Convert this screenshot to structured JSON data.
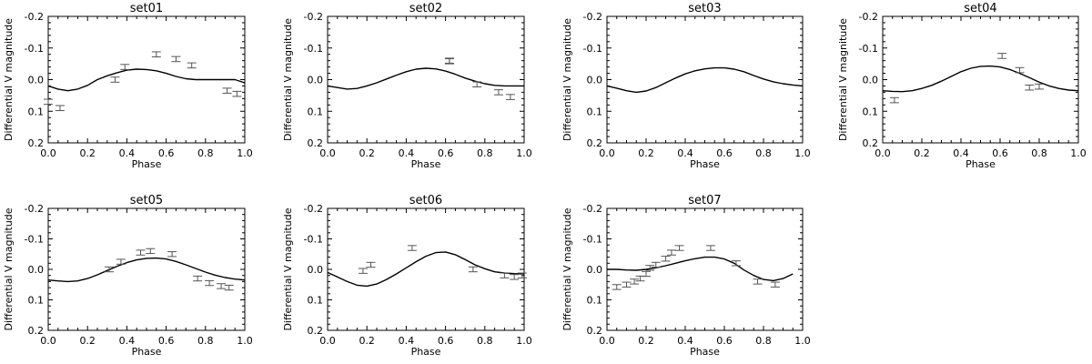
{
  "chart_data": [
    {
      "type": "scatter",
      "title": "set01",
      "xlabel": "Phase",
      "ylabel": "Differential V magnitude",
      "xlim": [
        0.0,
        1.0
      ],
      "ylim": [
        0.2,
        -0.2
      ],
      "xticks": [
        "0.0",
        "0.2",
        "0.4",
        "0.6",
        "0.8",
        "1.0"
      ],
      "yticks": [
        "-0.2",
        "-0.1",
        "0.0",
        "0.1",
        "0.2"
      ],
      "model": [
        [
          0.0,
          0.02
        ],
        [
          0.05,
          0.03
        ],
        [
          0.1,
          0.035
        ],
        [
          0.15,
          0.03
        ],
        [
          0.2,
          0.018
        ],
        [
          0.25,
          0.0
        ],
        [
          0.3,
          -0.012
        ],
        [
          0.35,
          -0.022
        ],
        [
          0.4,
          -0.03
        ],
        [
          0.45,
          -0.033
        ],
        [
          0.5,
          -0.032
        ],
        [
          0.55,
          -0.028
        ],
        [
          0.6,
          -0.02
        ],
        [
          0.65,
          -0.01
        ],
        [
          0.7,
          -0.003
        ],
        [
          0.75,
          0.0
        ],
        [
          0.8,
          0.0
        ],
        [
          0.85,
          0.0
        ],
        [
          0.9,
          0.0
        ],
        [
          0.95,
          0.0
        ],
        [
          1.0,
          0.01
        ]
      ],
      "points": [
        {
          "x": 0.0,
          "y": 0.07,
          "e": 0.008
        },
        {
          "x": 0.06,
          "y": 0.09,
          "e": 0.008
        },
        {
          "x": 0.34,
          "y": 0.0,
          "e": 0.008
        },
        {
          "x": 0.39,
          "y": -0.04,
          "e": 0.008
        },
        {
          "x": 0.55,
          "y": -0.08,
          "e": 0.008
        },
        {
          "x": 0.65,
          "y": -0.065,
          "e": 0.008
        },
        {
          "x": 0.73,
          "y": -0.045,
          "e": 0.008
        },
        {
          "x": 0.91,
          "y": 0.035,
          "e": 0.008
        },
        {
          "x": 0.96,
          "y": 0.045,
          "e": 0.008
        }
      ]
    },
    {
      "type": "scatter",
      "title": "set02",
      "xlabel": "Phase",
      "ylabel": "Differential V magnitude",
      "xlim": [
        0.0,
        1.0
      ],
      "ylim": [
        0.2,
        -0.2
      ],
      "xticks": [
        "0.0",
        "0.2",
        "0.4",
        "0.6",
        "0.8",
        "1.0"
      ],
      "yticks": [
        "-0.2",
        "-0.1",
        "0.0",
        "0.1",
        "0.2"
      ],
      "model": [
        [
          0.0,
          0.02
        ],
        [
          0.05,
          0.025
        ],
        [
          0.1,
          0.03
        ],
        [
          0.15,
          0.028
        ],
        [
          0.2,
          0.02
        ],
        [
          0.25,
          0.01
        ],
        [
          0.3,
          -0.002
        ],
        [
          0.35,
          -0.014
        ],
        [
          0.4,
          -0.025
        ],
        [
          0.45,
          -0.033
        ],
        [
          0.5,
          -0.036
        ],
        [
          0.55,
          -0.034
        ],
        [
          0.6,
          -0.027
        ],
        [
          0.65,
          -0.017
        ],
        [
          0.7,
          -0.005
        ],
        [
          0.75,
          0.005
        ],
        [
          0.8,
          0.013
        ],
        [
          0.85,
          0.018
        ],
        [
          0.9,
          0.02
        ],
        [
          0.95,
          0.02
        ],
        [
          1.0,
          0.02
        ]
      ],
      "points": [
        {
          "x": 0.62,
          "y": -0.06,
          "e": 0.008
        },
        {
          "x": 0.62,
          "y": -0.058,
          "e": 0.008
        },
        {
          "x": 0.76,
          "y": 0.015,
          "e": 0.008
        },
        {
          "x": 0.87,
          "y": 0.04,
          "e": 0.008
        },
        {
          "x": 0.93,
          "y": 0.055,
          "e": 0.008
        }
      ]
    },
    {
      "type": "scatter",
      "title": "set03",
      "xlabel": "Phase",
      "ylabel": "Differential V magnitude",
      "xlim": [
        0.0,
        1.0
      ],
      "ylim": [
        0.2,
        -0.2
      ],
      "xticks": [
        "0.0",
        "0.2",
        "0.4",
        "0.6",
        "0.8",
        "1.0"
      ],
      "yticks": [
        "-0.2",
        "-0.1",
        "0.0",
        "0.1",
        "0.2"
      ],
      "model": [
        [
          0.0,
          0.02
        ],
        [
          0.05,
          0.027
        ],
        [
          0.1,
          0.035
        ],
        [
          0.15,
          0.04
        ],
        [
          0.2,
          0.036
        ],
        [
          0.25,
          0.025
        ],
        [
          0.3,
          0.01
        ],
        [
          0.35,
          -0.005
        ],
        [
          0.4,
          -0.018
        ],
        [
          0.45,
          -0.028
        ],
        [
          0.5,
          -0.034
        ],
        [
          0.55,
          -0.037
        ],
        [
          0.6,
          -0.037
        ],
        [
          0.65,
          -0.033
        ],
        [
          0.7,
          -0.025
        ],
        [
          0.75,
          -0.013
        ],
        [
          0.8,
          -0.002
        ],
        [
          0.85,
          0.007
        ],
        [
          0.9,
          0.013
        ],
        [
          0.95,
          0.017
        ],
        [
          1.0,
          0.02
        ]
      ],
      "points": []
    },
    {
      "type": "scatter",
      "title": "set04",
      "xlabel": "Phase",
      "ylabel": "Differential V magnitude",
      "xlim": [
        0.0,
        1.0
      ],
      "ylim": [
        0.2,
        -0.2
      ],
      "xticks": [
        "0.0",
        "0.2",
        "0.4",
        "0.6",
        "0.8",
        "1.0"
      ],
      "yticks": [
        "-0.2",
        "-0.1",
        "0.0",
        "0.1",
        "0.2"
      ],
      "model": [
        [
          0.0,
          0.035
        ],
        [
          0.05,
          0.037
        ],
        [
          0.1,
          0.038
        ],
        [
          0.15,
          0.035
        ],
        [
          0.2,
          0.028
        ],
        [
          0.25,
          0.018
        ],
        [
          0.3,
          0.005
        ],
        [
          0.35,
          -0.01
        ],
        [
          0.4,
          -0.025
        ],
        [
          0.45,
          -0.036
        ],
        [
          0.5,
          -0.042
        ],
        [
          0.55,
          -0.043
        ],
        [
          0.6,
          -0.04
        ],
        [
          0.65,
          -0.032
        ],
        [
          0.7,
          -0.02
        ],
        [
          0.75,
          -0.006
        ],
        [
          0.8,
          0.008
        ],
        [
          0.85,
          0.02
        ],
        [
          0.9,
          0.028
        ],
        [
          0.95,
          0.033
        ],
        [
          1.0,
          0.035
        ]
      ],
      "points": [
        {
          "x": 0.06,
          "y": 0.065,
          "e": 0.008
        },
        {
          "x": 0.61,
          "y": -0.075,
          "e": 0.008
        },
        {
          "x": 0.7,
          "y": -0.03,
          "e": 0.008
        },
        {
          "x": 0.75,
          "y": 0.025,
          "e": 0.008
        },
        {
          "x": 0.8,
          "y": 0.022,
          "e": 0.008
        }
      ]
    },
    {
      "type": "scatter",
      "title": "set05",
      "xlabel": "Phase",
      "ylabel": "Differential V magnitude",
      "xlim": [
        0.0,
        1.0
      ],
      "ylim": [
        0.2,
        -0.2
      ],
      "xticks": [
        "0.0",
        "0.2",
        "0.4",
        "0.6",
        "0.8",
        "1.0"
      ],
      "yticks": [
        "-0.2",
        "-0.1",
        "0.0",
        "0.1",
        "0.2"
      ],
      "model": [
        [
          0.0,
          0.035
        ],
        [
          0.05,
          0.038
        ],
        [
          0.1,
          0.04
        ],
        [
          0.15,
          0.038
        ],
        [
          0.2,
          0.03
        ],
        [
          0.25,
          0.018
        ],
        [
          0.3,
          0.004
        ],
        [
          0.35,
          -0.01
        ],
        [
          0.4,
          -0.022
        ],
        [
          0.45,
          -0.031
        ],
        [
          0.5,
          -0.036
        ],
        [
          0.55,
          -0.037
        ],
        [
          0.6,
          -0.034
        ],
        [
          0.65,
          -0.026
        ],
        [
          0.7,
          -0.015
        ],
        [
          0.75,
          -0.003
        ],
        [
          0.8,
          0.009
        ],
        [
          0.85,
          0.019
        ],
        [
          0.9,
          0.027
        ],
        [
          0.95,
          0.032
        ],
        [
          1.0,
          0.035
        ]
      ],
      "points": [
        {
          "x": 0.31,
          "y": 0.0,
          "e": 0.008
        },
        {
          "x": 0.37,
          "y": -0.025,
          "e": 0.008
        },
        {
          "x": 0.47,
          "y": -0.055,
          "e": 0.008
        },
        {
          "x": 0.52,
          "y": -0.06,
          "e": 0.008
        },
        {
          "x": 0.63,
          "y": -0.05,
          "e": 0.008
        },
        {
          "x": 0.76,
          "y": 0.03,
          "e": 0.008
        },
        {
          "x": 0.82,
          "y": 0.045,
          "e": 0.008
        },
        {
          "x": 0.88,
          "y": 0.055,
          "e": 0.008
        },
        {
          "x": 0.92,
          "y": 0.06,
          "e": 0.008
        }
      ]
    },
    {
      "type": "scatter",
      "title": "set06",
      "xlabel": "Phase",
      "ylabel": "Differential V magnitude",
      "xlim": [
        0.0,
        1.0
      ],
      "ylim": [
        0.2,
        -0.2
      ],
      "xticks": [
        "0.0",
        "0.2",
        "0.4",
        "0.6",
        "0.8",
        "1.0"
      ],
      "yticks": [
        "-0.2",
        "-0.1",
        "0.0",
        "0.1",
        "0.2"
      ],
      "model": [
        [
          0.0,
          0.01
        ],
        [
          0.05,
          0.025
        ],
        [
          0.1,
          0.04
        ],
        [
          0.15,
          0.052
        ],
        [
          0.2,
          0.055
        ],
        [
          0.25,
          0.048
        ],
        [
          0.3,
          0.033
        ],
        [
          0.35,
          0.015
        ],
        [
          0.4,
          -0.005
        ],
        [
          0.45,
          -0.025
        ],
        [
          0.5,
          -0.043
        ],
        [
          0.55,
          -0.055
        ],
        [
          0.6,
          -0.057
        ],
        [
          0.65,
          -0.048
        ],
        [
          0.7,
          -0.032
        ],
        [
          0.75,
          -0.015
        ],
        [
          0.8,
          -0.002
        ],
        [
          0.85,
          0.008
        ],
        [
          0.9,
          0.012
        ],
        [
          0.95,
          0.014
        ],
        [
          1.0,
          0.015
        ]
      ],
      "points": [
        {
          "x": 0.18,
          "y": 0.005,
          "e": 0.008
        },
        {
          "x": 0.22,
          "y": -0.015,
          "e": 0.008
        },
        {
          "x": 0.43,
          "y": -0.07,
          "e": 0.008
        },
        {
          "x": 0.74,
          "y": 0.0,
          "e": 0.008
        },
        {
          "x": 0.9,
          "y": 0.02,
          "e": 0.008
        },
        {
          "x": 0.95,
          "y": 0.025,
          "e": 0.008
        },
        {
          "x": 0.99,
          "y": 0.02,
          "e": 0.008
        }
      ]
    },
    {
      "type": "scatter",
      "title": "set07",
      "xlabel": "Phase",
      "ylabel": "Differential V magnitude",
      "xlim": [
        0.0,
        1.0
      ],
      "ylim": [
        0.2,
        -0.2
      ],
      "xticks": [
        "0.0",
        "0.2",
        "0.4",
        "0.6",
        "0.8",
        "1.0"
      ],
      "yticks": [
        "-0.2",
        "-0.1",
        "0.0",
        "0.1",
        "0.2"
      ],
      "model": [
        [
          0.0,
          0.0
        ],
        [
          0.05,
          0.0
        ],
        [
          0.1,
          0.002
        ],
        [
          0.15,
          0.003
        ],
        [
          0.2,
          0.0
        ],
        [
          0.25,
          -0.005
        ],
        [
          0.3,
          -0.012
        ],
        [
          0.35,
          -0.02
        ],
        [
          0.4,
          -0.028
        ],
        [
          0.45,
          -0.035
        ],
        [
          0.5,
          -0.04
        ],
        [
          0.55,
          -0.04
        ],
        [
          0.6,
          -0.034
        ],
        [
          0.65,
          -0.02
        ],
        [
          0.7,
          0.002
        ],
        [
          0.75,
          0.02
        ],
        [
          0.8,
          0.033
        ],
        [
          0.85,
          0.037
        ],
        [
          0.9,
          0.03
        ],
        [
          0.95,
          0.015
        ]
      ],
      "points": [
        {
          "x": 0.05,
          "y": 0.058,
          "e": 0.008
        },
        {
          "x": 0.1,
          "y": 0.05,
          "e": 0.008
        },
        {
          "x": 0.14,
          "y": 0.04,
          "e": 0.008
        },
        {
          "x": 0.17,
          "y": 0.03,
          "e": 0.008
        },
        {
          "x": 0.2,
          "y": 0.015,
          "e": 0.008
        },
        {
          "x": 0.22,
          "y": -0.005,
          "e": 0.008
        },
        {
          "x": 0.25,
          "y": -0.015,
          "e": 0.008
        },
        {
          "x": 0.3,
          "y": -0.035,
          "e": 0.008
        },
        {
          "x": 0.33,
          "y": -0.055,
          "e": 0.008
        },
        {
          "x": 0.37,
          "y": -0.07,
          "e": 0.008
        },
        {
          "x": 0.53,
          "y": -0.07,
          "e": 0.008
        },
        {
          "x": 0.66,
          "y": -0.02,
          "e": 0.008
        },
        {
          "x": 0.77,
          "y": 0.04,
          "e": 0.008
        },
        {
          "x": 0.86,
          "y": 0.05,
          "e": 0.008
        }
      ]
    }
  ]
}
